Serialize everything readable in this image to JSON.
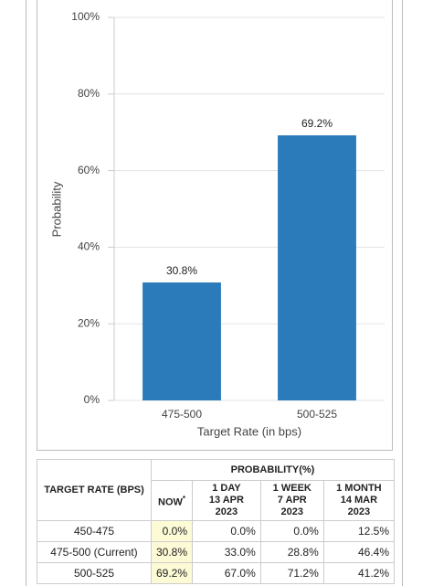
{
  "chart_data": {
    "type": "bar",
    "y_label": "Probability",
    "x_label": "Target Rate (in bps)",
    "categories": [
      "475-500",
      "500-525"
    ],
    "values": [
      30.8,
      69.2
    ],
    "value_labels": [
      "30.8%",
      "69.2%"
    ],
    "color": "#2b7bba",
    "ylim": [
      0,
      100
    ],
    "yticks": [
      {
        "value": 0,
        "label": "0%"
      },
      {
        "value": 20,
        "label": "20%"
      },
      {
        "value": 40,
        "label": "40%"
      },
      {
        "value": 60,
        "label": "60%"
      },
      {
        "value": 80,
        "label": "80%"
      },
      {
        "value": 100,
        "label": "100%"
      }
    ],
    "grid": true
  },
  "table": {
    "rate_header": "TARGET RATE (BPS)",
    "probability_header": "PROBABILITY(%)",
    "columns": [
      {
        "label": "NOW",
        "note": "*"
      },
      {
        "label": "1 DAY",
        "date": "13 APR 2023"
      },
      {
        "label": "1 WEEK",
        "date": "7 APR 2023"
      },
      {
        "label": "1 MONTH",
        "date": "14 MAR 2023"
      }
    ],
    "rows": [
      [
        "450-475",
        "0.0%",
        "0.0%",
        "0.0%",
        "12.5%"
      ],
      [
        "475-500 (Current)",
        "30.8%",
        "33.0%",
        "28.8%",
        "46.4%"
      ],
      [
        "500-525",
        "69.2%",
        "67.0%",
        "71.2%",
        "41.2%"
      ]
    ]
  }
}
